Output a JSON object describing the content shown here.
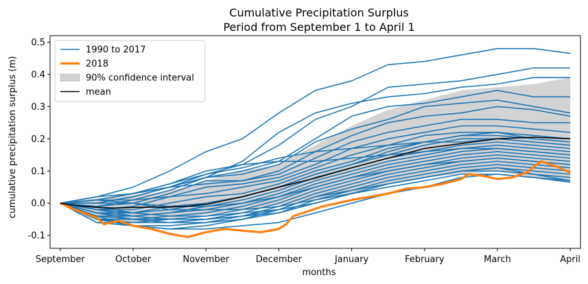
{
  "chart_data": {
    "type": "line",
    "title": "Cumulative Precipitation Surplus",
    "subtitle": "Period from September 1 to April 1",
    "xlabel": "months",
    "ylabel": "cumulative precipitation surplus (m)",
    "x_ticks": [
      "September",
      "October",
      "November",
      "December",
      "January",
      "February",
      "March",
      "April"
    ],
    "y_ticks": [
      -0.1,
      0.0,
      0.1,
      0.2,
      0.3,
      0.4,
      0.5
    ],
    "ylim": [
      -0.14,
      0.52
    ],
    "xlim": [
      -0.14,
      7.14
    ],
    "grid": false,
    "legend": {
      "placement": "top-left",
      "entries": [
        {
          "label": "1990 to 2017",
          "kind": "line",
          "color": "#1f77b4"
        },
        {
          "label": "2018",
          "kind": "line-thick",
          "color": "#ff7f0e"
        },
        {
          "label": "90% confidence interval",
          "kind": "patch",
          "color": "#d3d3d3"
        },
        {
          "label": "mean",
          "kind": "line",
          "color": "#000000"
        }
      ]
    },
    "series": [
      {
        "name": "mean",
        "color": "#000000",
        "x": [
          0,
          0.25,
          0.5,
          0.75,
          1,
          1.25,
          1.5,
          1.75,
          2,
          2.5,
          3,
          3.5,
          4,
          4.5,
          5,
          5.5,
          6,
          6.5,
          7
        ],
        "y": [
          0.0,
          -0.008,
          -0.013,
          -0.015,
          -0.013,
          -0.012,
          -0.012,
          -0.009,
          -0.004,
          0.02,
          0.05,
          0.078,
          0.11,
          0.14,
          0.17,
          0.185,
          0.2,
          0.205,
          0.2
        ]
      },
      {
        "name": "2018",
        "color": "#ff7f0e",
        "x": [
          0,
          0.2,
          0.5,
          0.6,
          0.8,
          1,
          1.25,
          1.5,
          1.75,
          2,
          2.25,
          2.5,
          2.75,
          3,
          3.1,
          3.2,
          3.4,
          3.6,
          3.8,
          4,
          4.25,
          4.5,
          4.75,
          5,
          5.25,
          5.5,
          5.6,
          5.8,
          6,
          6.2,
          6.4,
          6.6,
          6.8,
          7
        ],
        "y": [
          0.0,
          -0.02,
          -0.045,
          -0.065,
          -0.055,
          -0.07,
          -0.08,
          -0.095,
          -0.105,
          -0.09,
          -0.08,
          -0.085,
          -0.09,
          -0.08,
          -0.065,
          -0.04,
          -0.025,
          -0.01,
          0.0,
          0.01,
          0.02,
          0.03,
          0.045,
          0.05,
          0.06,
          0.075,
          0.09,
          0.085,
          0.075,
          0.08,
          0.095,
          0.13,
          0.115,
          0.095
        ]
      }
    ],
    "band": {
      "name": "90% confidence interval",
      "color": "#d3d3d3",
      "x": [
        0,
        0.25,
        0.5,
        0.75,
        1,
        1.25,
        1.5,
        1.75,
        2,
        2.5,
        3,
        3.5,
        4,
        4.5,
        5,
        5.5,
        6,
        6.5,
        7
      ],
      "upper": [
        0.0,
        0.01,
        0.015,
        0.02,
        0.025,
        0.03,
        0.04,
        0.05,
        0.07,
        0.1,
        0.12,
        0.18,
        0.24,
        0.29,
        0.32,
        0.35,
        0.36,
        0.37,
        0.39
      ],
      "lower": [
        0.0,
        -0.035,
        -0.05,
        -0.055,
        -0.06,
        -0.055,
        -0.05,
        -0.04,
        -0.035,
        -0.02,
        -0.005,
        0.01,
        0.03,
        0.06,
        0.08,
        0.09,
        0.1,
        0.08,
        0.07
      ]
    },
    "years_1990_2017": {
      "color": "#1f77b4",
      "x": [
        0,
        0.5,
        1,
        1.5,
        2,
        2.5,
        3,
        3.5,
        4,
        4.5,
        5,
        5.5,
        6,
        6.5,
        7
      ],
      "lines": [
        [
          0.0,
          0.02,
          0.05,
          0.1,
          0.16,
          0.2,
          0.28,
          0.35,
          0.38,
          0.43,
          0.44,
          0.46,
          0.48,
          0.48,
          0.465
        ],
        [
          0.0,
          0.01,
          0.03,
          0.06,
          0.09,
          0.12,
          0.18,
          0.26,
          0.3,
          0.36,
          0.37,
          0.38,
          0.4,
          0.42,
          0.42
        ],
        [
          0.0,
          0.0,
          0.02,
          0.05,
          0.08,
          0.13,
          0.22,
          0.28,
          0.31,
          0.33,
          0.34,
          0.36,
          0.37,
          0.39,
          0.39
        ],
        [
          0.0,
          0.01,
          0.01,
          0.04,
          0.08,
          0.1,
          0.13,
          0.2,
          0.27,
          0.3,
          0.31,
          0.33,
          0.35,
          0.33,
          0.33
        ],
        [
          0.0,
          0.01,
          0.03,
          0.05,
          0.08,
          0.09,
          0.12,
          0.19,
          0.23,
          0.26,
          0.3,
          0.31,
          0.32,
          0.3,
          0.28
        ],
        [
          0.0,
          0.0,
          0.02,
          0.05,
          0.06,
          0.07,
          0.1,
          0.16,
          0.21,
          0.25,
          0.27,
          0.28,
          0.3,
          0.29,
          0.27
        ],
        [
          0.0,
          -0.01,
          0.0,
          0.03,
          0.07,
          0.07,
          0.09,
          0.14,
          0.19,
          0.22,
          0.24,
          0.26,
          0.26,
          0.25,
          0.25
        ],
        [
          0.0,
          -0.01,
          0.01,
          0.02,
          0.05,
          0.06,
          0.08,
          0.12,
          0.17,
          0.2,
          0.22,
          0.24,
          0.24,
          0.23,
          0.22
        ],
        [
          0.0,
          -0.02,
          -0.01,
          0.02,
          0.03,
          0.05,
          0.07,
          0.11,
          0.15,
          0.18,
          0.21,
          0.22,
          0.22,
          0.21,
          0.2
        ],
        [
          0.0,
          -0.02,
          -0.02,
          0.0,
          0.02,
          0.03,
          0.06,
          0.1,
          0.13,
          0.17,
          0.19,
          0.21,
          0.21,
          0.2,
          0.19
        ],
        [
          0.0,
          -0.03,
          -0.03,
          -0.01,
          0.0,
          0.02,
          0.05,
          0.09,
          0.12,
          0.15,
          0.18,
          0.2,
          0.2,
          0.19,
          0.18
        ],
        [
          0.0,
          -0.03,
          -0.04,
          -0.03,
          -0.01,
          0.01,
          0.04,
          0.08,
          0.11,
          0.14,
          0.16,
          0.18,
          0.19,
          0.18,
          0.17
        ],
        [
          0.0,
          -0.04,
          -0.04,
          -0.03,
          -0.02,
          0.0,
          0.03,
          0.07,
          0.1,
          0.13,
          0.15,
          0.17,
          0.18,
          0.17,
          0.16
        ],
        [
          0.0,
          -0.04,
          -0.05,
          -0.04,
          -0.03,
          -0.01,
          0.02,
          0.06,
          0.09,
          0.12,
          0.14,
          0.16,
          0.17,
          0.16,
          0.15
        ],
        [
          0.0,
          -0.05,
          -0.05,
          -0.05,
          -0.04,
          -0.02,
          0.01,
          0.05,
          0.08,
          0.11,
          0.13,
          0.15,
          0.16,
          0.15,
          0.14
        ],
        [
          0.0,
          -0.05,
          -0.06,
          -0.05,
          -0.05,
          -0.03,
          0.0,
          0.04,
          0.07,
          0.1,
          0.12,
          0.14,
          0.15,
          0.14,
          0.13
        ],
        [
          0.0,
          -0.06,
          -0.06,
          -0.06,
          -0.06,
          -0.04,
          -0.01,
          0.03,
          0.06,
          0.09,
          0.11,
          0.13,
          0.14,
          0.13,
          0.12
        ],
        [
          0.0,
          -0.06,
          -0.07,
          -0.07,
          -0.06,
          -0.05,
          -0.02,
          0.02,
          0.05,
          0.08,
          0.1,
          0.12,
          0.13,
          0.12,
          0.11
        ],
        [
          0.0,
          -0.03,
          -0.05,
          -0.06,
          -0.05,
          -0.04,
          -0.02,
          0.02,
          0.04,
          0.07,
          0.09,
          0.11,
          0.12,
          0.11,
          0.1
        ],
        [
          0.0,
          -0.02,
          -0.04,
          -0.05,
          -0.05,
          -0.04,
          -0.03,
          0.01,
          0.04,
          0.06,
          0.08,
          0.1,
          0.11,
          0.1,
          0.09
        ],
        [
          0.0,
          -0.02,
          -0.03,
          -0.04,
          -0.04,
          -0.03,
          -0.02,
          0.0,
          0.03,
          0.06,
          0.08,
          0.1,
          0.1,
          0.09,
          0.08
        ],
        [
          0.0,
          0.0,
          0.0,
          -0.02,
          -0.02,
          -0.02,
          -0.01,
          0.01,
          0.03,
          0.05,
          0.07,
          0.09,
          0.09,
          0.08,
          0.07
        ],
        [
          0.0,
          0.01,
          0.0,
          -0.01,
          -0.01,
          0.0,
          0.02,
          0.05,
          0.08,
          0.1,
          0.12,
          0.13,
          0.14,
          0.13,
          0.12
        ],
        [
          0.0,
          0.02,
          0.03,
          0.05,
          0.09,
          0.11,
          0.14,
          0.16,
          0.17,
          0.18,
          0.19,
          0.19,
          0.2,
          0.19,
          0.18
        ],
        [
          0.0,
          -0.04,
          -0.07,
          -0.08,
          -0.07,
          -0.05,
          -0.03,
          0.0,
          0.03,
          0.06,
          0.08,
          0.1,
          0.11,
          0.09,
          0.07
        ],
        [
          0.0,
          -0.05,
          -0.07,
          -0.08,
          -0.08,
          -0.07,
          -0.06,
          -0.03,
          0.0,
          0.03,
          0.05,
          0.08,
          0.09,
          0.08,
          0.065
        ],
        [
          0.0,
          0.01,
          0.03,
          0.06,
          0.1,
          0.12,
          0.13,
          0.13,
          0.14,
          0.15,
          0.16,
          0.17,
          0.17,
          0.16,
          0.15
        ],
        [
          0.0,
          -0.01,
          -0.03,
          -0.02,
          0.0,
          0.02,
          0.05,
          0.09,
          0.12,
          0.16,
          0.19,
          0.21,
          0.22,
          0.2,
          0.19
        ]
      ]
    }
  }
}
